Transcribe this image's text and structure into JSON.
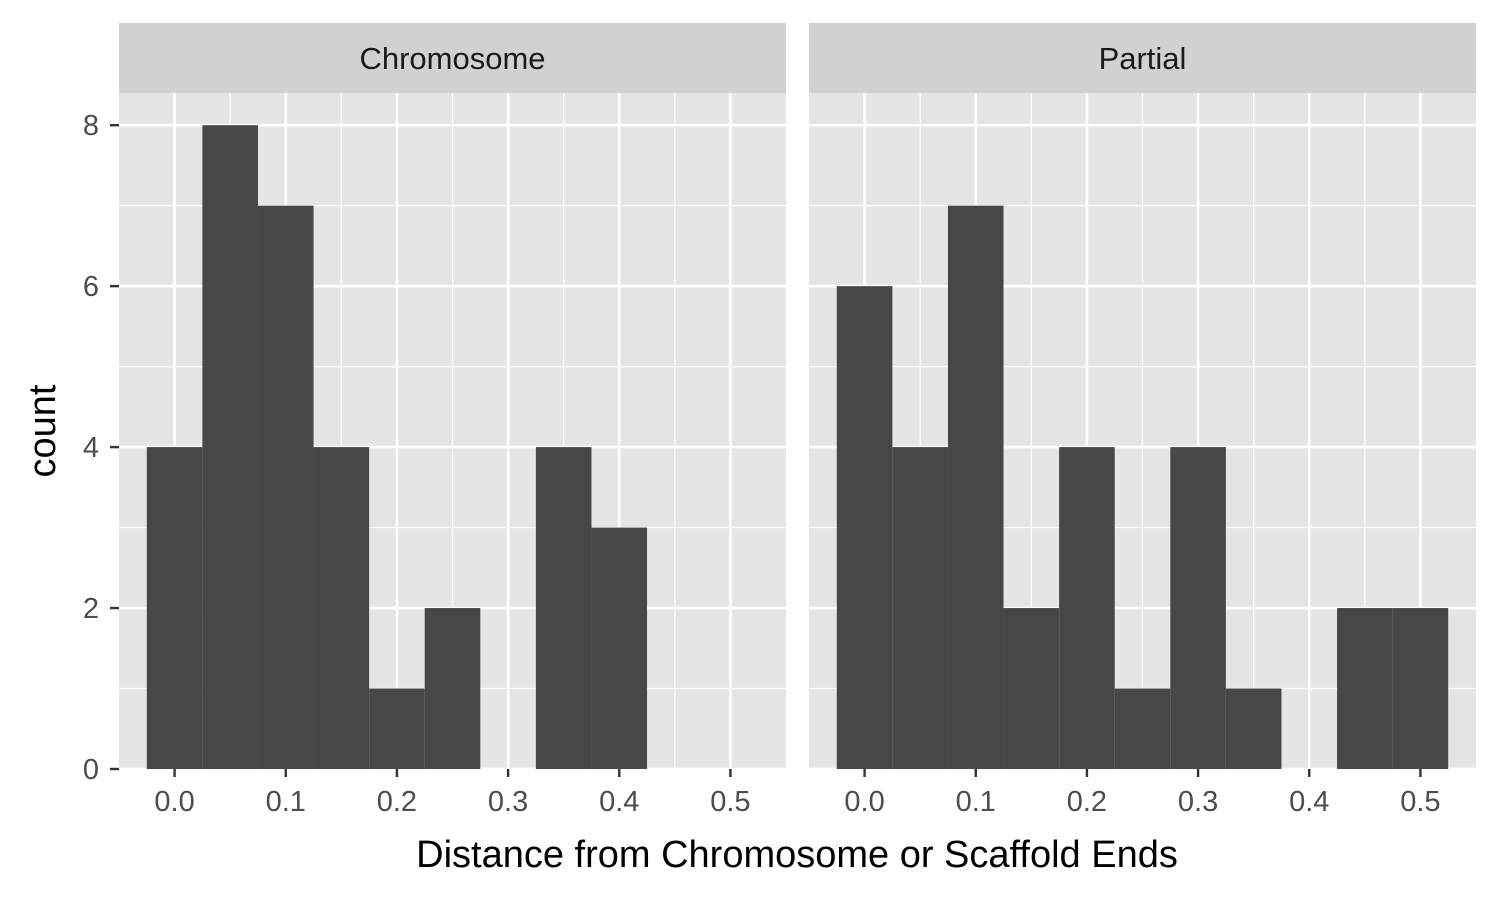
{
  "chart_data": {
    "type": "bar",
    "subtype": "faceted-histogram",
    "xlabel": "Distance from Chromosome or Scaffold Ends",
    "ylabel": "count",
    "xlim": [
      -0.05,
      0.55
    ],
    "ylim": [
      0,
      8.4
    ],
    "x_ticks": [
      0.0,
      0.1,
      0.2,
      0.3,
      0.4,
      0.5
    ],
    "x_tick_labels": [
      "0.0",
      "0.1",
      "0.2",
      "0.3",
      "0.4",
      "0.5"
    ],
    "y_ticks": [
      0,
      2,
      4,
      6,
      8
    ],
    "y_tick_labels": [
      "0",
      "2",
      "4",
      "6",
      "8"
    ],
    "bin_width": 0.05,
    "bin_centers": [
      0.0,
      0.05,
      0.1,
      0.15,
      0.2,
      0.25,
      0.3,
      0.35,
      0.4,
      0.45,
      0.5
    ],
    "grid": true,
    "bar_color": "#474747",
    "panel_background": "#e5e5e5",
    "strip_background": "#d1d1d1",
    "grid_color": "#ffffff",
    "facets": [
      {
        "name": "Chromosome",
        "counts": [
          4,
          8,
          7,
          4,
          1,
          2,
          0,
          4,
          3,
          0,
          0
        ]
      },
      {
        "name": "Partial",
        "counts": [
          6,
          4,
          7,
          2,
          4,
          1,
          4,
          1,
          0,
          2,
          2
        ]
      }
    ]
  }
}
